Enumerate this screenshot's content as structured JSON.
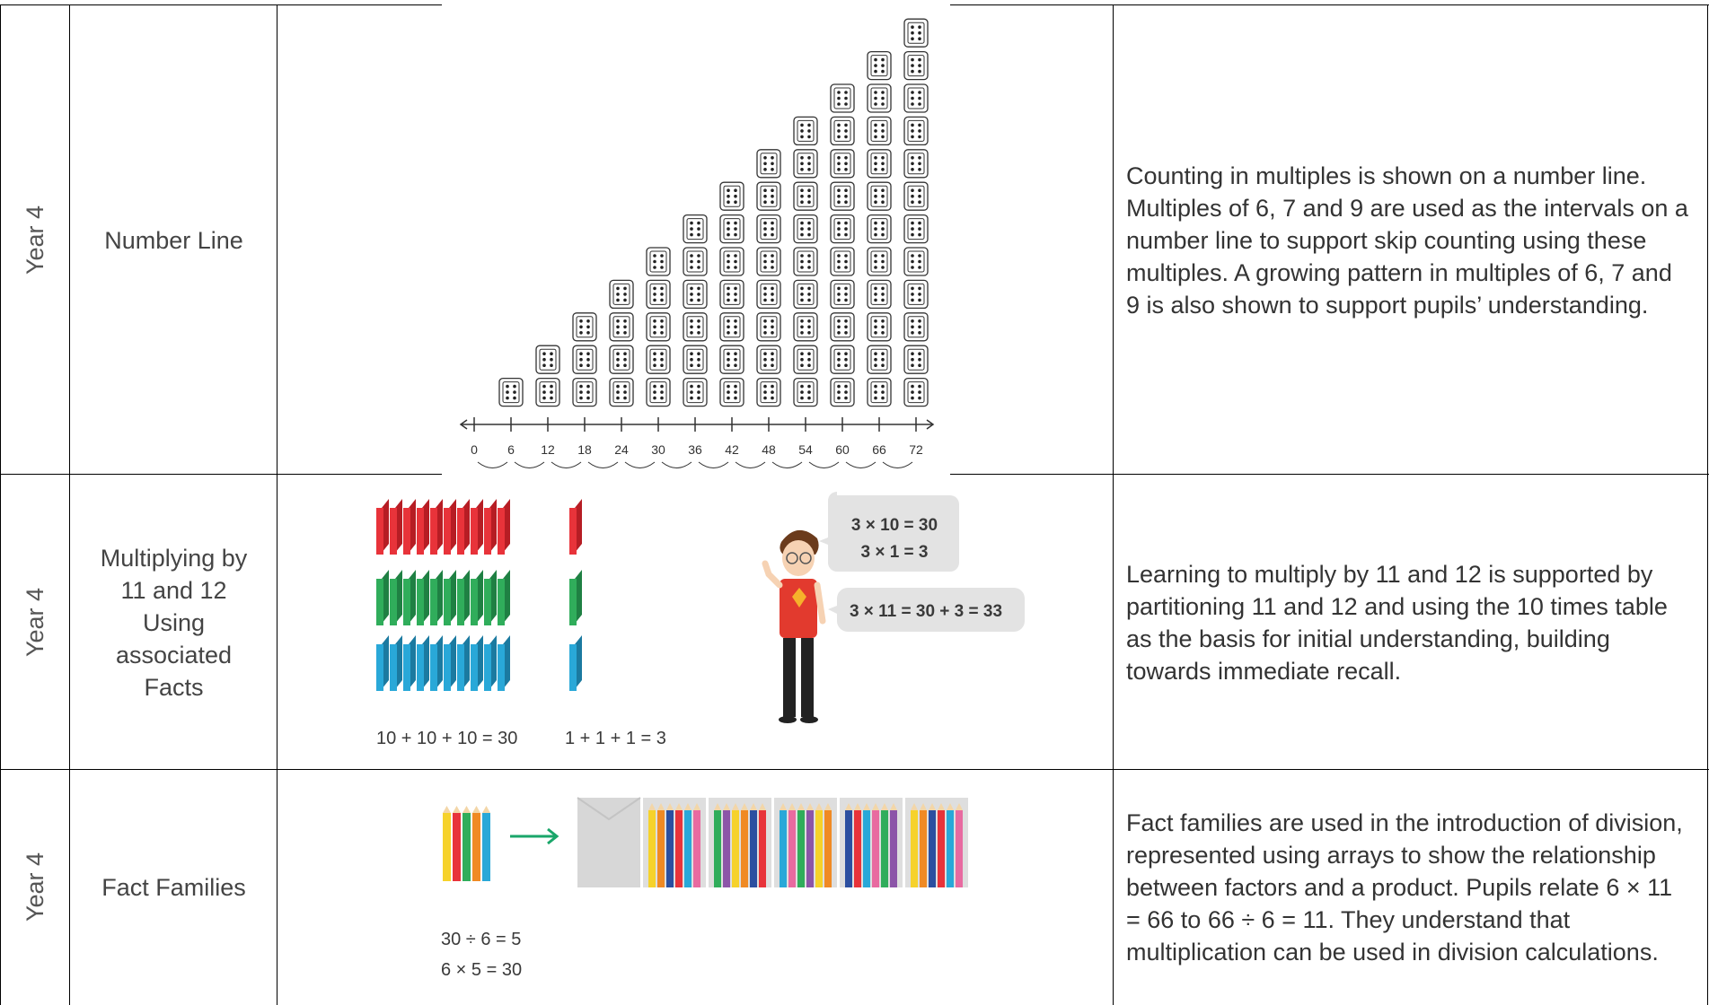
{
  "table": {
    "rows": [
      {
        "year": "Year 4",
        "topic": "Number Line",
        "description": "Counting in multiples is shown on a number line. Multiples of 6, 7 and 9 are used as the intervals on a number line to support skip counting using these multiples. A growing pattern in multiples of 6, 7 and 9 is also shown to support pupils’ understanding.",
        "illustration": {
          "number_line_labels": [
            0,
            6,
            12,
            18,
            24,
            30,
            36,
            42,
            48,
            54,
            60,
            66,
            72
          ]
        }
      },
      {
        "year": "Year 4",
        "topic": "Multiplying by 11 and 12 Using associated Facts",
        "description": "Learning to multiply by 11 and 12 is supported by partitioning 11 and 12 and using the 10 times table as the basis for initial understanding, building towards immediate recall.",
        "illustration": {
          "tens_sum": "10 + 10 + 10 = 30",
          "ones_sum": "1 + 1 + 1 = 3",
          "speech_1": [
            "3 × 10 = 30",
            "3 × 1 = 3"
          ],
          "speech_2": "3 × 11 = 30 + 3 = 33"
        }
      },
      {
        "year": "Year 4",
        "topic": "Fact Families",
        "description": "Fact families are used in the introduction of division, represented using arrays to show the relationship between factors and a product. Pupils relate 6 × 11 = 66 to 66 ÷ 6 = 11. They understand that multiplication can be used in division calculations.",
        "illustration": {
          "equations": [
            "30 ÷ 6 = 5",
            "6 × 5 = 30"
          ]
        }
      }
    ]
  }
}
